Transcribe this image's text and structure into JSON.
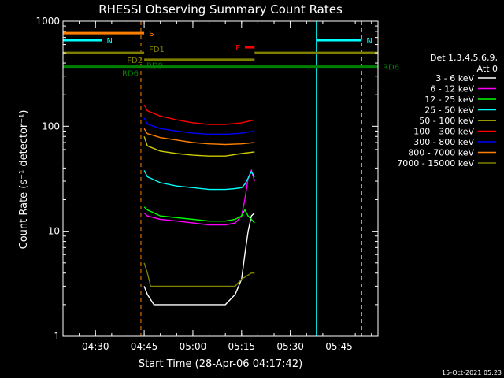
{
  "chart_data": {
    "type": "line",
    "title": "RHESSI Observing Summary Count Rates",
    "xlabel": "Start Time (28-Apr-06 04:17:42)",
    "ylabel": "Count Rate (s⁻¹ detector⁻¹)",
    "ylim": [
      1,
      1000
    ],
    "yscale": "log",
    "xlim_minutes": [
      "04:20",
      "05:57"
    ],
    "x_ticks": [
      "04:30",
      "04:45",
      "05:00",
      "05:15",
      "05:30",
      "05:45"
    ],
    "y_ticks": [
      "1",
      "10",
      "100",
      "1000"
    ],
    "grid": false,
    "legend_position": "right",
    "legend_header": [
      "Det 1,3,4,5,6,9,",
      "Att 0"
    ],
    "series": [
      {
        "name": "3 - 6 keV",
        "color": "#ffffff",
        "x": [
          "04:45",
          "04:46",
          "04:48",
          "05:00",
          "05:10",
          "05:13",
          "05:15",
          "05:16",
          "05:17",
          "05:18",
          "05:19"
        ],
        "y": [
          3,
          2.5,
          2,
          2,
          2,
          2.5,
          3.5,
          6,
          10,
          14,
          15
        ]
      },
      {
        "name": "6 - 12 keV",
        "color": "#ff00ff",
        "x": [
          "04:45",
          "04:46",
          "04:50",
          "04:55",
          "05:00",
          "05:05",
          "05:10",
          "05:13",
          "05:15",
          "05:16",
          "05:17",
          "05:18",
          "05:19"
        ],
        "y": [
          15,
          14,
          13,
          12.5,
          12,
          11.5,
          11.5,
          12,
          14,
          20,
          32,
          38,
          30
        ]
      },
      {
        "name": "12 - 25 keV",
        "color": "#00ff00",
        "x": [
          "04:45",
          "04:46",
          "04:50",
          "04:55",
          "05:00",
          "05:05",
          "05:10",
          "05:13",
          "05:15",
          "05:16",
          "05:17",
          "05:18",
          "05:19"
        ],
        "y": [
          17,
          16,
          14,
          13.5,
          13,
          12.5,
          12.5,
          13,
          14,
          16,
          14,
          13,
          12
        ]
      },
      {
        "name": "25 - 50 keV",
        "color": "#00ffff",
        "x": [
          "04:45",
          "04:46",
          "04:50",
          "04:55",
          "05:00",
          "05:05",
          "05:10",
          "05:13",
          "05:15",
          "05:16",
          "05:17",
          "05:18",
          "05:19"
        ],
        "y": [
          38,
          33,
          29,
          27,
          26,
          25,
          25,
          25.5,
          26,
          28,
          32,
          37,
          33
        ]
      },
      {
        "name": "50 - 100 keV",
        "color": "#cccc00",
        "x": [
          "04:45",
          "04:46",
          "04:50",
          "04:55",
          "05:00",
          "05:05",
          "05:10",
          "05:15",
          "05:19"
        ],
        "y": [
          80,
          65,
          58,
          55,
          53,
          52,
          52,
          55,
          57
        ]
      },
      {
        "name": "100 - 300 keV",
        "color": "#ff0000",
        "x": [
          "04:45",
          "04:46",
          "04:50",
          "04:55",
          "05:00",
          "05:05",
          "05:10",
          "05:15",
          "05:19"
        ],
        "y": [
          160,
          140,
          125,
          115,
          108,
          104,
          104,
          108,
          115
        ]
      },
      {
        "name": "300 - 800 keV",
        "color": "#0000ff",
        "x": [
          "04:45",
          "04:46",
          "04:50",
          "04:55",
          "05:00",
          "05:05",
          "05:10",
          "05:15",
          "05:19"
        ],
        "y": [
          120,
          105,
          95,
          90,
          86,
          84,
          84,
          86,
          90
        ]
      },
      {
        "name": "800 - 7000 keV",
        "color": "#ff8000",
        "x": [
          "04:45",
          "04:46",
          "04:50",
          "04:55",
          "05:00",
          "05:05",
          "05:10",
          "05:15",
          "05:19"
        ],
        "y": [
          95,
          85,
          78,
          74,
          70,
          68,
          67,
          68,
          70
        ]
      },
      {
        "name": "7000 - 15000 keV",
        "color": "#808000",
        "x": [
          "04:45",
          "04:46",
          "04:47",
          "04:50",
          "04:55",
          "05:00",
          "05:05",
          "05:10",
          "05:13",
          "05:15",
          "05:18",
          "05:19"
        ],
        "y": [
          5,
          4,
          3,
          3,
          3,
          3,
          3,
          3,
          3,
          3.5,
          4,
          4
        ]
      }
    ],
    "flag_bars": [
      {
        "label": "S",
        "color": "#ff8000",
        "x": [
          "04:20",
          "04:45"
        ],
        "level": 770
      },
      {
        "label": "N",
        "color": "#00ffff",
        "x": [
          "04:20",
          "04:32"
        ],
        "level": 660
      },
      {
        "label": "N",
        "color": "#00ffff",
        "x": [
          "05:38",
          "05:52"
        ],
        "level": 660
      },
      {
        "label": "F",
        "color": "#ff0000",
        "x": [
          "05:16",
          "05:19"
        ],
        "level": 565
      },
      {
        "label": "FD1",
        "color": "#808000",
        "x": [
          "04:20",
          "04:45"
        ],
        "level": 500
      },
      {
        "label": "FD2",
        "color": "#808000",
        "x": [
          "04:45",
          "05:19"
        ],
        "level": 430
      },
      {
        "label": "",
        "color": "#808000",
        "x": [
          "05:19",
          "05:57"
        ],
        "level": 500
      },
      {
        "label": "RD6",
        "color": "#008000",
        "x": [
          "04:20",
          "05:57"
        ],
        "level": 370
      },
      {
        "label": "RD9",
        "color": "#008000",
        "x": [],
        "level": 370
      }
    ],
    "vertical_lines": [
      {
        "x": "04:20",
        "color": "#00ffff",
        "style": "solid"
      },
      {
        "x": "04:32",
        "color": "#00ffff",
        "style": "dashed"
      },
      {
        "x": "04:44",
        "color": "#ff8000",
        "style": "dashed"
      },
      {
        "x": "05:38",
        "color": "#00ffff",
        "style": "solid"
      },
      {
        "x": "05:52",
        "color": "#00ffff",
        "style": "dashed"
      }
    ]
  },
  "footer": {
    "timestamp": "15-Oct-2021 05:23"
  }
}
